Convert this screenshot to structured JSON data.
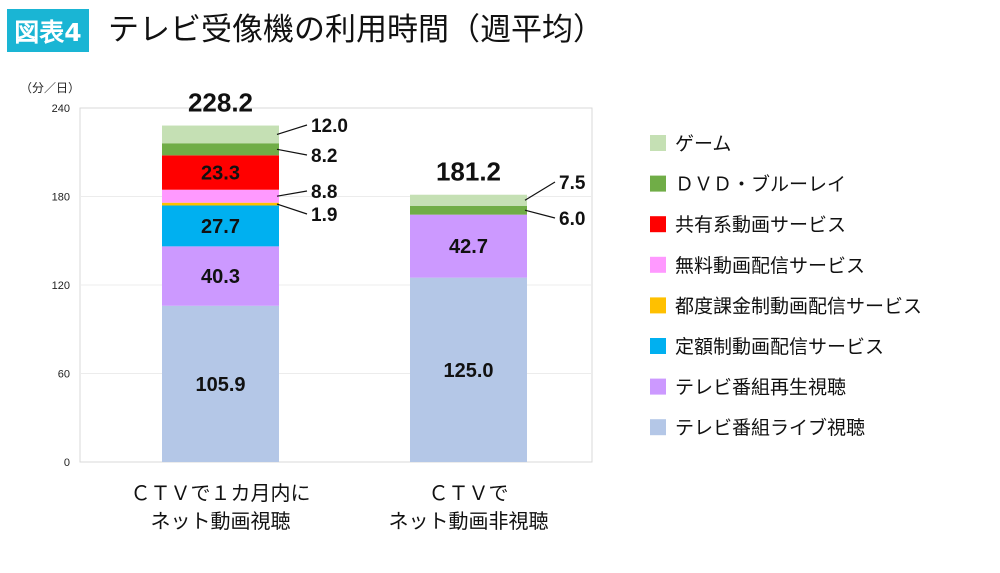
{
  "header": {
    "badge": "図表4",
    "title": "テレビ受像機の利用時間（週平均）"
  },
  "chart_data": {
    "type": "bar",
    "stacked": true,
    "title": "テレビ受像機の利用時間（週平均）",
    "ylabel": "（分／日）",
    "ylim": [
      0,
      240
    ],
    "yticks": [
      0,
      60,
      120,
      180,
      240
    ],
    "grid": true,
    "legend_position": "right",
    "categories": [
      [
        "ＣＴＶで１カ月内に",
        "ネット動画視聴"
      ],
      [
        "ＣＴＶで",
        "ネット動画非視聴"
      ]
    ],
    "totals": [
      "228.2",
      "181.2"
    ],
    "series": [
      {
        "name": "テレビ番組ライブ視聴",
        "color": "#b4c7e7",
        "values": [
          105.9,
          125.0
        ],
        "labels": [
          "105.9",
          "125.0"
        ]
      },
      {
        "name": "テレビ番組再生視聴",
        "color": "#cc99ff",
        "values": [
          40.3,
          42.7
        ],
        "labels": [
          "40.3",
          "42.7"
        ]
      },
      {
        "name": "定額制動画配信サービス",
        "color": "#00b0f0",
        "values": [
          27.7,
          0
        ],
        "labels": [
          "27.7",
          ""
        ]
      },
      {
        "name": "都度課金制動画配信サービス",
        "color": "#ffc000",
        "values": [
          1.9,
          0
        ],
        "labels": [
          "1.9",
          ""
        ]
      },
      {
        "name": "無料動画配信サービス",
        "color": "#ff99ff",
        "values": [
          8.8,
          0
        ],
        "labels": [
          "8.8",
          ""
        ]
      },
      {
        "name": "共有系動画サービス",
        "color": "#ff0000",
        "values": [
          23.3,
          0
        ],
        "labels": [
          "23.3",
          ""
        ]
      },
      {
        "name": "ＤＶＤ・ブルーレイ",
        "color": "#70ad47",
        "values": [
          8.2,
          6.0
        ],
        "labels": [
          "8.2",
          "6.0"
        ]
      },
      {
        "name": "ゲーム",
        "color": "#c5e0b4",
        "values": [
          12.0,
          7.5
        ],
        "labels": [
          "12.0",
          "7.5"
        ]
      }
    ]
  }
}
